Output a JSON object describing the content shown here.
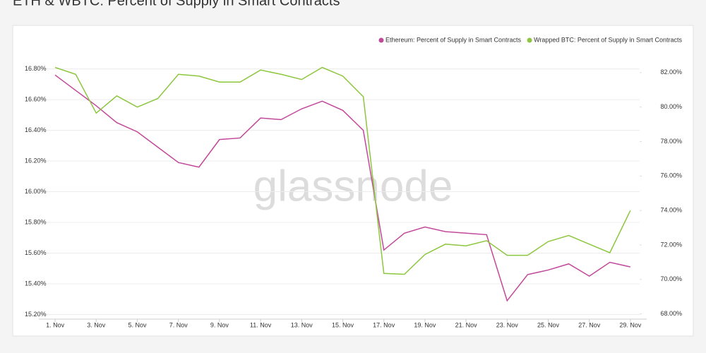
{
  "chart_data": {
    "type": "line",
    "title": "ETH & WBTC: Percent of Supply in Smart Contracts",
    "watermark": "glassnode",
    "x": [
      1,
      2,
      3,
      4,
      5,
      6,
      7,
      8,
      9,
      10,
      11,
      12,
      13,
      14,
      15,
      16,
      17,
      18,
      19,
      20,
      21,
      22,
      23,
      24,
      25,
      26,
      27,
      28,
      29
    ],
    "xlim": [
      0.55,
      29.45
    ],
    "xticks": [
      {
        "value": 1,
        "label": "1. Nov"
      },
      {
        "value": 3,
        "label": "3. Nov"
      },
      {
        "value": 5,
        "label": "5. Nov"
      },
      {
        "value": 7,
        "label": "7. Nov"
      },
      {
        "value": 9,
        "label": "9. Nov"
      },
      {
        "value": 11,
        "label": "11. Nov"
      },
      {
        "value": 13,
        "label": "13. Nov"
      },
      {
        "value": 15,
        "label": "15. Nov"
      },
      {
        "value": 17,
        "label": "17. Nov"
      },
      {
        "value": 19,
        "label": "19. Nov"
      },
      {
        "value": 21,
        "label": "21. Nov"
      },
      {
        "value": 23,
        "label": "23. Nov"
      },
      {
        "value": 25,
        "label": "25. Nov"
      },
      {
        "value": 27,
        "label": "27. Nov"
      },
      {
        "value": 29,
        "label": "29. Nov"
      }
    ],
    "ylim": [
      15.17,
      16.95
    ],
    "yticks": [
      {
        "value": 15.2,
        "label": "15.20%"
      },
      {
        "value": 15.4,
        "label": "15.40%"
      },
      {
        "value": 15.6,
        "label": "15.60%"
      },
      {
        "value": 15.8,
        "label": "15.80%"
      },
      {
        "value": 16.0,
        "label": "16.00%"
      },
      {
        "value": 16.2,
        "label": "16.20%"
      },
      {
        "value": 16.4,
        "label": "16.40%"
      },
      {
        "value": 16.6,
        "label": "16.60%"
      },
      {
        "value": 16.8,
        "label": "16.80%"
      }
    ],
    "y2lim": [
      67.7,
      83.55
    ],
    "y2ticks": [
      {
        "value": 68,
        "label": "68.00%"
      },
      {
        "value": 70,
        "label": "70.00%"
      },
      {
        "value": 72,
        "label": "72.00%"
      },
      {
        "value": 74,
        "label": "74.00%"
      },
      {
        "value": 76,
        "label": "76.00%"
      },
      {
        "value": 78,
        "label": "78.00%"
      },
      {
        "value": 80,
        "label": "80.00%"
      },
      {
        "value": 82,
        "label": "82.00%"
      }
    ],
    "grid": true,
    "legend": "top-right",
    "series": [
      {
        "name": "Ethereum: Percent of Supply in Smart Contracts",
        "color": "#c2489a",
        "values": [
          16.76,
          16.66,
          16.56,
          16.45,
          16.39,
          16.29,
          16.19,
          16.16,
          16.34,
          16.35,
          16.48,
          16.47,
          16.54,
          16.59,
          16.53,
          16.4,
          15.62,
          15.73,
          15.77,
          15.74,
          15.73,
          15.72,
          15.29,
          15.46,
          15.49,
          15.53,
          15.45,
          15.54,
          15.51
        ]
      },
      {
        "name": "Wrapped BTC: Percent of Supply in Smart Contracts",
        "color": "#8dc63f",
        "axis": "y2",
        "values": [
          82.3,
          81.9,
          79.65,
          80.65,
          80.0,
          80.5,
          81.9,
          81.8,
          81.45,
          81.45,
          82.15,
          81.9,
          81.6,
          82.3,
          81.8,
          80.6,
          70.35,
          70.3,
          71.45,
          72.05,
          71.95,
          72.25,
          71.4,
          71.4,
          72.2,
          72.55,
          72.05,
          71.55,
          74.0
        ]
      }
    ]
  }
}
